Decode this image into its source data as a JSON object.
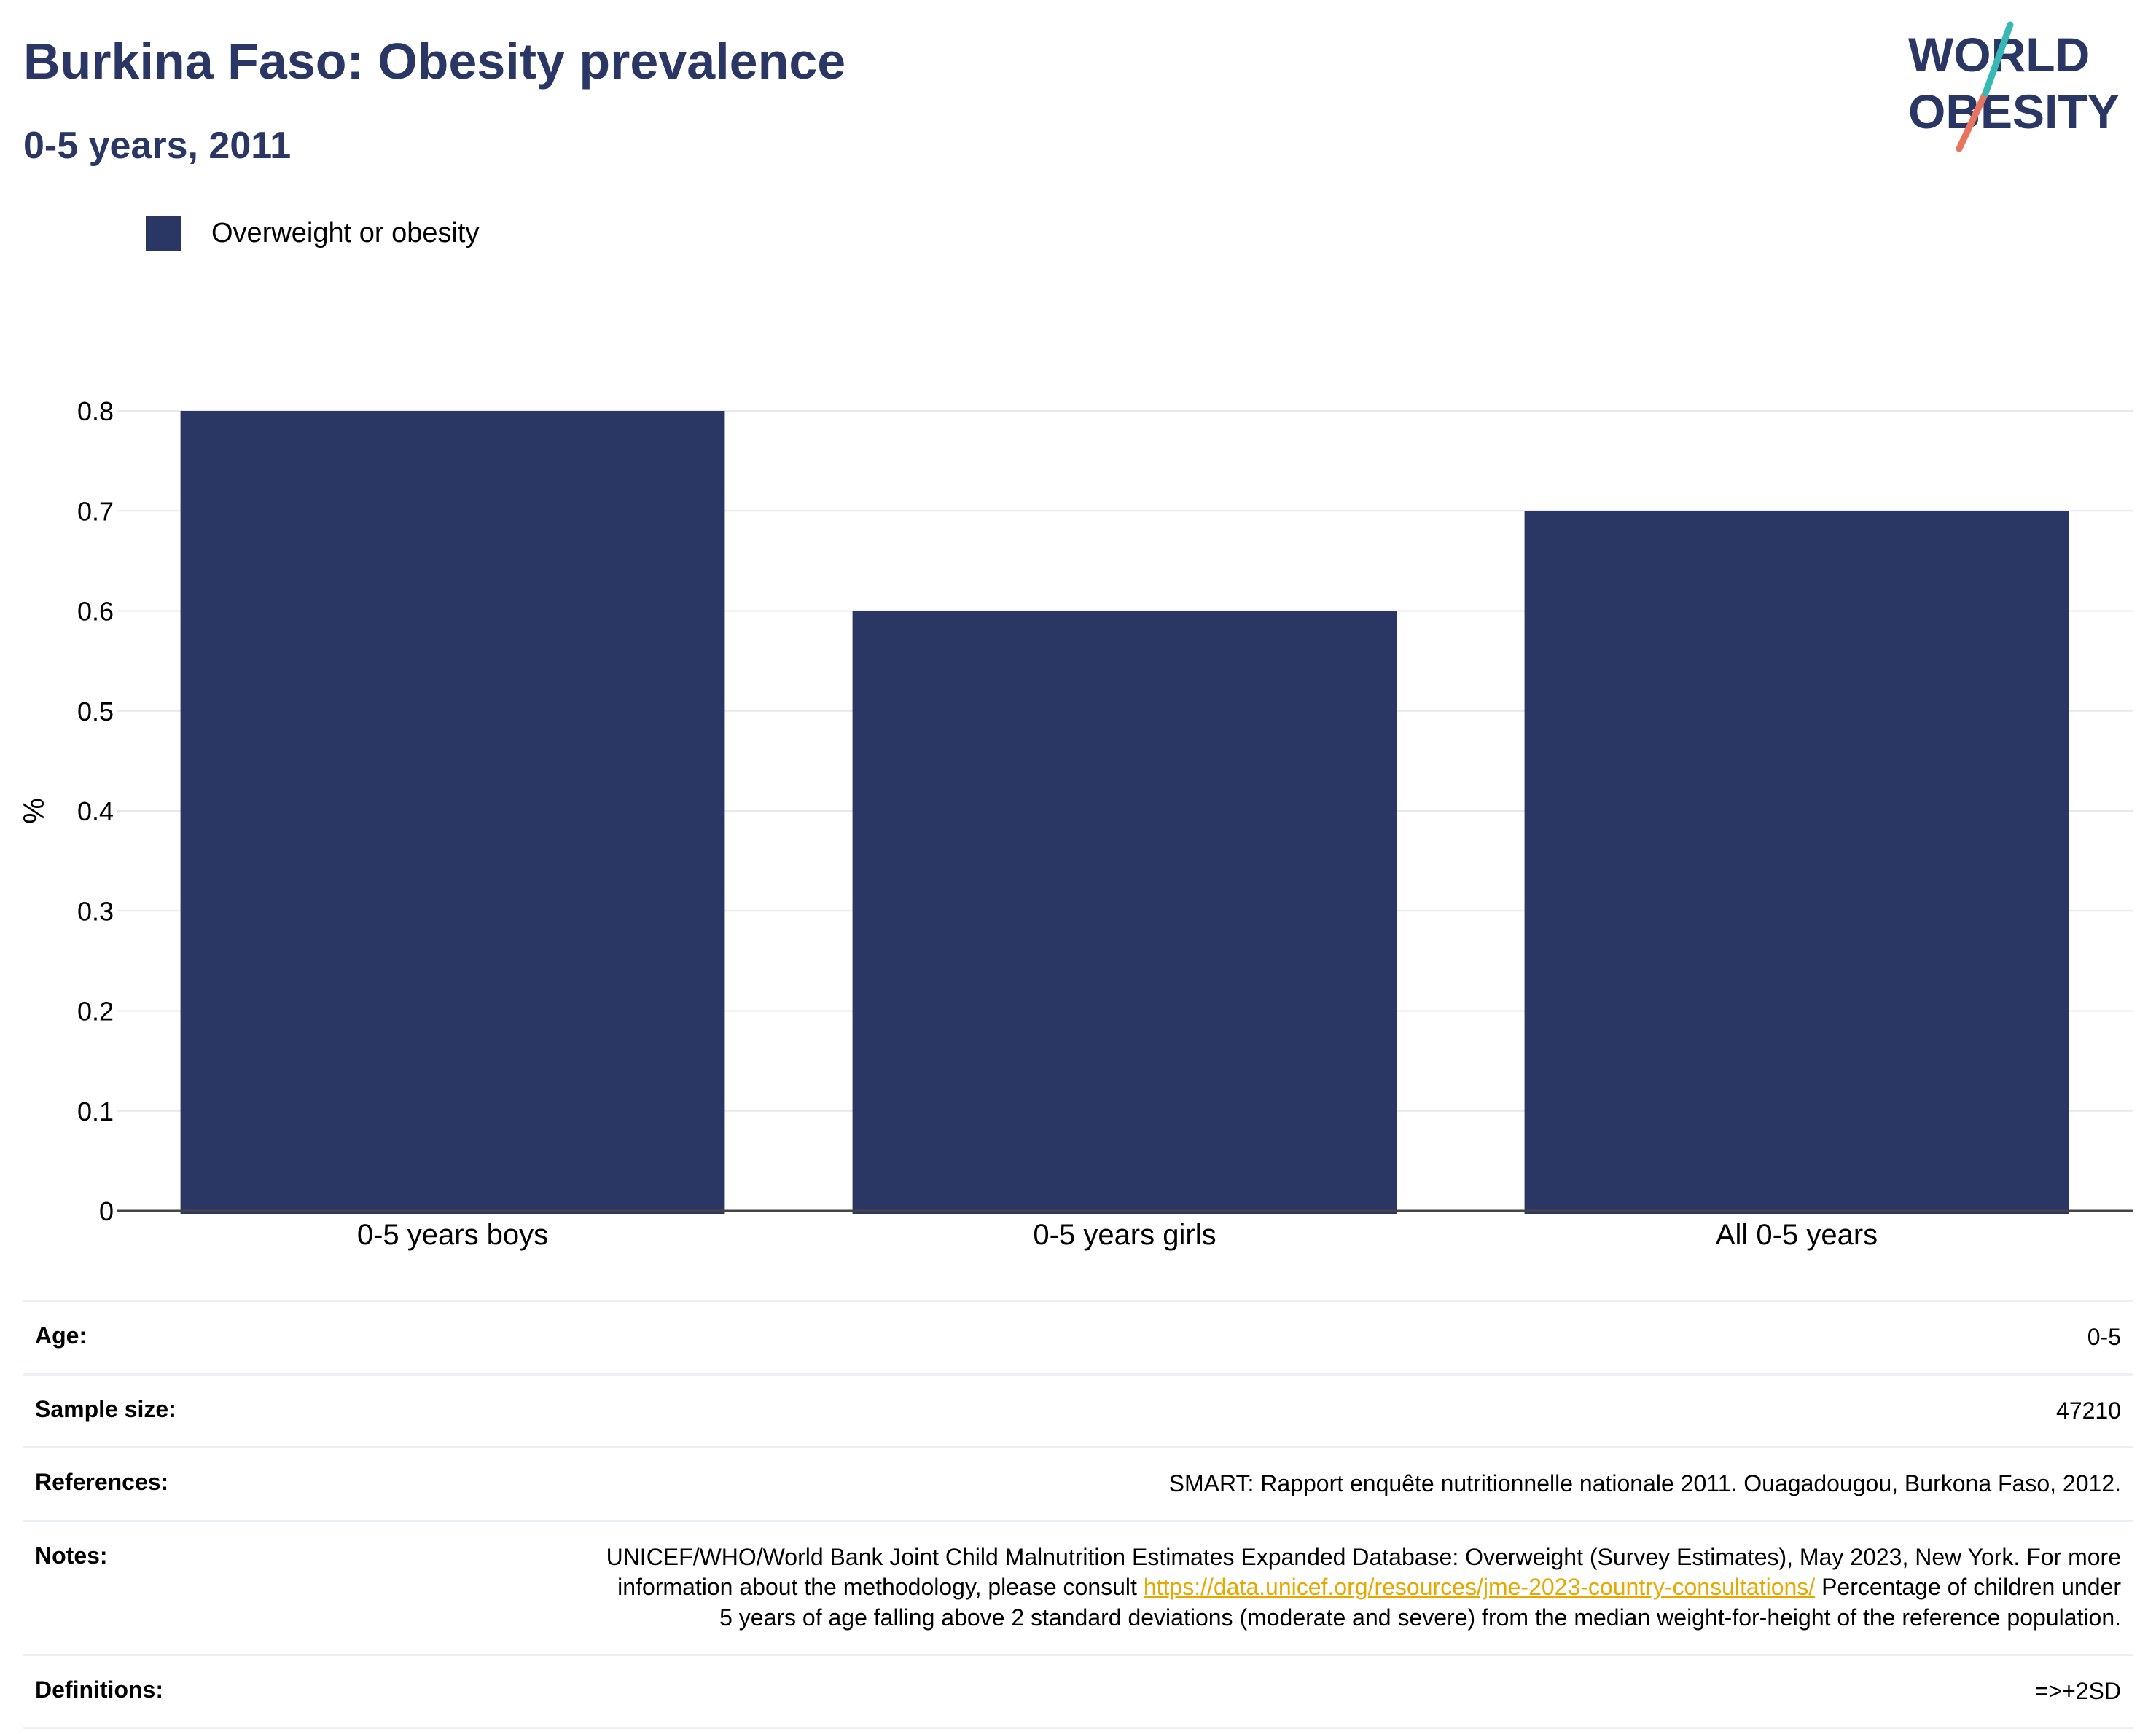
{
  "header": {
    "title": "Burkina Faso: Obesity prevalence",
    "subtitle": "0-5 years, 2011"
  },
  "logo": {
    "line1": "WORLD",
    "line2": "OBESITY"
  },
  "colors": {
    "bar": "#2a3663",
    "logo_teal": "#36b9b5",
    "logo_coral": "#e8735f",
    "link": "#e6a800"
  },
  "chart_data": {
    "type": "bar",
    "categories": [
      "0-5 years boys",
      "0-5 years girls",
      "All 0-5 years"
    ],
    "series": [
      {
        "name": "Overweight or obesity",
        "values": [
          0.8,
          0.6,
          0.7
        ]
      }
    ],
    "ylabel": "%",
    "xlabel": "",
    "ylim": [
      0,
      0.8
    ],
    "yticks": [
      "0",
      "0.1",
      "0.2",
      "0.3",
      "0.4",
      "0.5",
      "0.6",
      "0.7",
      "0.8"
    ],
    "grid": true,
    "legend": "top-left"
  },
  "meta": {
    "age": {
      "label": "Age:",
      "value": "0-5"
    },
    "sample": {
      "label": "Sample size:",
      "value": "47210"
    },
    "references": {
      "label": "References:",
      "value": "SMART: Rapport enquête nutritionnelle nationale 2011. Ouagadougou, Burkona Faso, 2012."
    },
    "notes": {
      "label": "Notes:",
      "text1": "UNICEF/WHO/World Bank Joint Child Malnutrition Estimates Expanded Database: Overweight (Survey Estimates), May 2023, New York. For more information about the methodology, please consult",
      "link": "https://data.unicef.org/resources/jme-2023-country-consultations/",
      "text2": "Percentage of children under 5 years of age falling above 2 standard deviations (moderate and severe) from the median weight-for-height of the reference population."
    },
    "definitions": {
      "label": "Definitions:",
      "value": "=>+2SD"
    }
  }
}
